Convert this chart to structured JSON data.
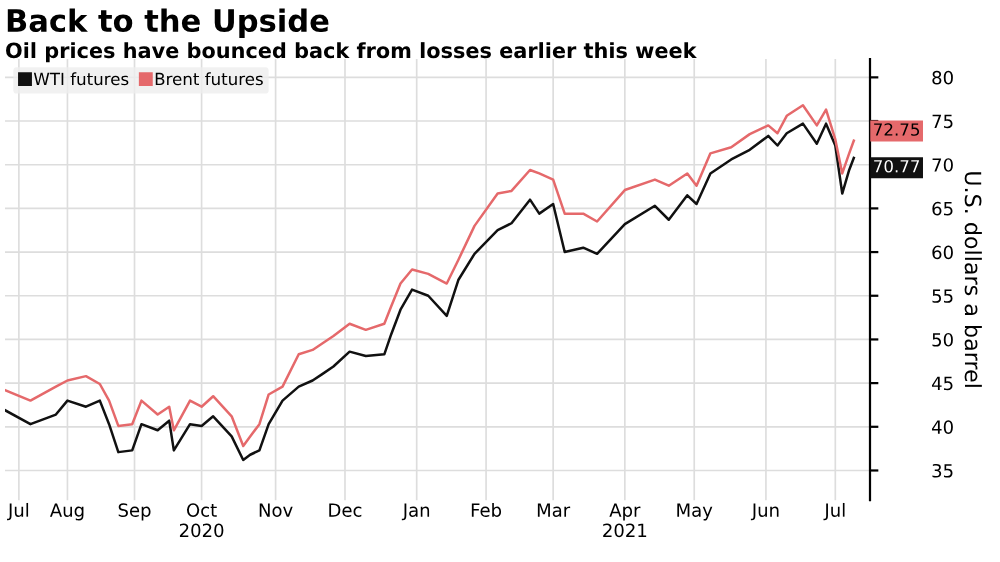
{
  "chart_data": {
    "type": "line",
    "title": "Back to the Upside",
    "subtitle": "Oil prices have bounced back from losses earlier this week",
    "ylabel": "U.S. dollars a barrel",
    "x": [
      "2020-07-21",
      "2020-08-01",
      "2020-08-12",
      "2020-08-17",
      "2020-08-25",
      "2020-08-31",
      "2020-09-04",
      "2020-09-08",
      "2020-09-14",
      "2020-09-18",
      "2020-09-25",
      "2020-09-30",
      "2020-10-02",
      "2020-10-09",
      "2020-10-14",
      "2020-10-19",
      "2020-10-27",
      "2020-11-01",
      "2020-11-04",
      "2020-11-08",
      "2020-11-12",
      "2020-11-18",
      "2020-11-25",
      "2020-12-01",
      "2020-12-05",
      "2020-12-10",
      "2020-12-17",
      "2020-12-24",
      "2021-01-01",
      "2021-01-04",
      "2021-01-08",
      "2021-01-13",
      "2021-01-20",
      "2021-01-28",
      "2021-02-02",
      "2021-02-09",
      "2021-02-19",
      "2021-02-25",
      "2021-03-05",
      "2021-03-09",
      "2021-03-15",
      "2021-03-20",
      "2021-03-28",
      "2021-04-03",
      "2021-04-15",
      "2021-04-28",
      "2021-05-04",
      "2021-05-12",
      "2021-05-16",
      "2021-05-22",
      "2021-05-31",
      "2021-06-08",
      "2021-06-16",
      "2021-06-20",
      "2021-06-24",
      "2021-07-01",
      "2021-07-07",
      "2021-07-11",
      "2021-07-15",
      "2021-07-18",
      "2021-07-21",
      "2021-07-23"
    ],
    "series": [
      {
        "name": "WTI futures",
        "color": "#111111",
        "values": [
          41.9,
          40.3,
          41.4,
          43.0,
          42.3,
          43.0,
          40.3,
          37.1,
          37.3,
          40.3,
          39.6,
          40.7,
          37.3,
          40.3,
          40.1,
          41.2,
          38.9,
          36.2,
          36.8,
          37.3,
          40.3,
          43.0,
          44.6,
          45.3,
          46.0,
          46.9,
          48.6,
          48.1,
          48.3,
          50.6,
          53.4,
          55.7,
          55.0,
          52.7,
          56.8,
          59.8,
          62.5,
          63.3,
          66.0,
          64.4,
          65.5,
          60.0,
          60.5,
          59.8,
          63.2,
          65.3,
          63.7,
          66.5,
          65.5,
          69.0,
          70.6,
          71.7,
          73.3,
          72.2,
          73.6,
          74.7,
          72.4,
          74.7,
          72.2,
          66.7,
          69.4,
          70.77
        ],
        "value_labels": [
          null,
          null,
          null,
          null,
          null,
          null,
          null,
          null,
          null,
          null,
          null,
          null,
          null,
          null,
          null,
          null,
          null,
          null,
          null,
          null,
          null,
          null,
          null,
          null,
          null,
          null,
          null,
          null,
          null,
          null,
          null,
          null,
          null,
          null,
          null,
          null,
          null,
          null,
          null,
          null,
          null,
          null,
          null,
          null,
          null,
          null,
          null,
          null,
          null,
          null,
          null,
          null,
          null,
          null,
          null,
          null,
          null,
          null,
          null,
          null,
          null,
          "70.77"
        ]
      },
      {
        "name": "Brent futures",
        "color": "#e5696b",
        "values": [
          44.2,
          43.0,
          44.6,
          45.3,
          45.8,
          44.9,
          43.0,
          40.1,
          40.3,
          43.0,
          41.4,
          42.3,
          39.6,
          43.0,
          42.3,
          43.5,
          41.2,
          37.8,
          38.9,
          40.3,
          43.7,
          44.6,
          48.3,
          48.8,
          49.5,
          50.4,
          51.8,
          51.1,
          51.8,
          53.8,
          56.4,
          58.0,
          57.5,
          56.4,
          59.1,
          63.0,
          66.7,
          67.0,
          69.4,
          69.0,
          68.3,
          64.4,
          64.4,
          63.5,
          67.1,
          68.3,
          67.6,
          69.0,
          67.6,
          71.3,
          72.0,
          73.5,
          74.5,
          73.6,
          75.6,
          76.8,
          74.5,
          76.3,
          72.9,
          69.0,
          71.3,
          72.75
        ],
        "value_labels": [
          null,
          null,
          null,
          null,
          null,
          null,
          null,
          null,
          null,
          null,
          null,
          null,
          null,
          null,
          null,
          null,
          null,
          null,
          null,
          null,
          null,
          null,
          null,
          null,
          null,
          null,
          null,
          null,
          null,
          null,
          null,
          null,
          null,
          null,
          null,
          null,
          null,
          null,
          null,
          null,
          null,
          null,
          null,
          null,
          null,
          null,
          null,
          null,
          null,
          null,
          null,
          null,
          null,
          null,
          null,
          null,
          null,
          null,
          null,
          null,
          null,
          "72.75"
        ]
      }
    ],
    "xlim": [
      "2020-07-21",
      "2021-07-30"
    ],
    "xticks": [
      {
        "value": "2020-07-27",
        "label": "Jul"
      },
      {
        "value": "2020-08-17",
        "label": "Aug"
      },
      {
        "value": "2020-09-15",
        "label": "Sep"
      },
      {
        "value": "2020-10-14",
        "label": "Oct\n2020"
      },
      {
        "value": "2020-11-15",
        "label": "Nov"
      },
      {
        "value": "2020-12-15",
        "label": "Dec"
      },
      {
        "value": "2021-01-15",
        "label": "Jan"
      },
      {
        "value": "2021-02-14",
        "label": "Feb"
      },
      {
        "value": "2021-03-15",
        "label": "Mar"
      },
      {
        "value": "2021-04-15",
        "label": "Apr\n2021"
      },
      {
        "value": "2021-05-15",
        "label": "May"
      },
      {
        "value": "2021-06-15",
        "label": "Jun"
      },
      {
        "value": "2021-07-15",
        "label": "Jul"
      }
    ],
    "ylim": [
      31.6,
      82.1
    ],
    "yticks": [
      35,
      40,
      45,
      50,
      55,
      60,
      65,
      70,
      75,
      80
    ],
    "grid": true,
    "legend": "top left",
    "marker": "none",
    "line_style": "solid"
  }
}
